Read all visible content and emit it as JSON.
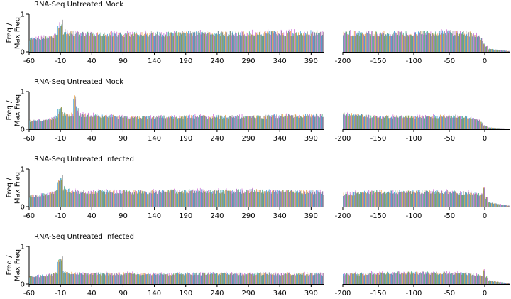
{
  "figure": {
    "ylabel_lines": [
      "Freq /",
      "Max Freq"
    ]
  },
  "colors": {
    "series": [
      "#1f8ecf",
      "#e8962e",
      "#2e9e6e",
      "#c65dd0",
      "#8f8f8f"
    ]
  },
  "chart_data": [
    {
      "type": "bar",
      "title": "RNA-Seq Untreated Mock",
      "ylabel": "Freq / Max Freq",
      "ylim": [
        0,
        1
      ],
      "yticks": [
        0,
        1
      ],
      "series_names": [],
      "panels": [
        {
          "xlim": [
            -60,
            410
          ],
          "xticks": [
            -60,
            -10,
            40,
            90,
            140,
            190,
            240,
            290,
            340,
            390
          ],
          "bins": 113,
          "profile": [
            {
              "x": -60,
              "y": 0.33
            },
            {
              "x": -30,
              "y": 0.4
            },
            {
              "x": -14,
              "y": 0.45
            },
            {
              "x": -10,
              "y": 0.98
            },
            {
              "x": -6,
              "y": 0.58
            },
            {
              "x": 0,
              "y": 0.5
            },
            {
              "x": 20,
              "y": 0.48
            },
            {
              "x": 100,
              "y": 0.48
            },
            {
              "x": 200,
              "y": 0.5
            },
            {
              "x": 300,
              "y": 0.5
            },
            {
              "x": 400,
              "y": 0.52
            },
            {
              "x": 410,
              "y": 0.48
            }
          ]
        },
        {
          "xlim": [
            -200,
            35
          ],
          "xticks": [
            -200,
            -150,
            -100,
            -50,
            0
          ],
          "bins": 62,
          "profile": [
            {
              "x": -200,
              "y": 0.5
            },
            {
              "x": -150,
              "y": 0.5
            },
            {
              "x": -100,
              "y": 0.5
            },
            {
              "x": -50,
              "y": 0.52
            },
            {
              "x": -15,
              "y": 0.48
            },
            {
              "x": -5,
              "y": 0.35
            },
            {
              "x": 0,
              "y": 0.2
            },
            {
              "x": 5,
              "y": 0.08
            },
            {
              "x": 35,
              "y": 0.02
            }
          ]
        }
      ]
    },
    {
      "type": "bar",
      "title": "RNA-Seq Untreated Mock",
      "ylabel": "Freq / Max Freq",
      "ylim": [
        0,
        1
      ],
      "yticks": [
        0,
        1
      ],
      "series_names": [],
      "panels": [
        {
          "xlim": [
            -60,
            410
          ],
          "xticks": [
            -60,
            -10,
            40,
            90,
            140,
            190,
            240,
            290,
            340,
            390
          ],
          "bins": 113,
          "profile": [
            {
              "x": -60,
              "y": 0.22
            },
            {
              "x": -30,
              "y": 0.26
            },
            {
              "x": -14,
              "y": 0.34
            },
            {
              "x": -10,
              "y": 0.68
            },
            {
              "x": -6,
              "y": 0.42
            },
            {
              "x": 0,
              "y": 0.38
            },
            {
              "x": 10,
              "y": 0.4
            },
            {
              "x": 14,
              "y": 0.99
            },
            {
              "x": 18,
              "y": 0.4
            },
            {
              "x": 100,
              "y": 0.32
            },
            {
              "x": 200,
              "y": 0.34
            },
            {
              "x": 300,
              "y": 0.34
            },
            {
              "x": 400,
              "y": 0.38
            },
            {
              "x": 410,
              "y": 0.36
            }
          ]
        },
        {
          "xlim": [
            -200,
            35
          ],
          "xticks": [
            -200,
            -150,
            -100,
            -50,
            0
          ],
          "bins": 62,
          "profile": [
            {
              "x": -200,
              "y": 0.4
            },
            {
              "x": -150,
              "y": 0.34
            },
            {
              "x": -100,
              "y": 0.33
            },
            {
              "x": -50,
              "y": 0.36
            },
            {
              "x": -15,
              "y": 0.3
            },
            {
              "x": -5,
              "y": 0.18
            },
            {
              "x": 0,
              "y": 0.1
            },
            {
              "x": 5,
              "y": 0.05
            },
            {
              "x": 35,
              "y": 0.01
            }
          ]
        }
      ]
    },
    {
      "type": "bar",
      "title": "RNA-Seq Untreated Infected",
      "ylabel": "Freq / Max Freq",
      "ylim": [
        0,
        1
      ],
      "yticks": [
        0,
        1
      ],
      "series_names": [],
      "panels": [
        {
          "xlim": [
            -60,
            410
          ],
          "xticks": [
            -60,
            -10,
            40,
            90,
            140,
            190,
            240,
            290,
            340,
            390
          ],
          "bins": 113,
          "profile": [
            {
              "x": -60,
              "y": 0.28
            },
            {
              "x": -30,
              "y": 0.34
            },
            {
              "x": -14,
              "y": 0.42
            },
            {
              "x": -10,
              "y": 0.98
            },
            {
              "x": -6,
              "y": 0.55
            },
            {
              "x": 0,
              "y": 0.45
            },
            {
              "x": 20,
              "y": 0.4
            },
            {
              "x": 100,
              "y": 0.4
            },
            {
              "x": 200,
              "y": 0.42
            },
            {
              "x": 300,
              "y": 0.42
            },
            {
              "x": 400,
              "y": 0.4
            },
            {
              "x": 410,
              "y": 0.38
            }
          ]
        },
        {
          "xlim": [
            -200,
            35
          ],
          "xticks": [
            -200,
            -150,
            -100,
            -50,
            0
          ],
          "bins": 62,
          "profile": [
            {
              "x": -200,
              "y": 0.34
            },
            {
              "x": -150,
              "y": 0.4
            },
            {
              "x": -100,
              "y": 0.4
            },
            {
              "x": -50,
              "y": 0.4
            },
            {
              "x": -15,
              "y": 0.36
            },
            {
              "x": -5,
              "y": 0.3
            },
            {
              "x": 0,
              "y": 0.55
            },
            {
              "x": 4,
              "y": 0.12
            },
            {
              "x": 35,
              "y": 0.02
            }
          ]
        }
      ]
    },
    {
      "type": "bar",
      "title": "RNA-Seq Untreated Infected",
      "ylabel": "Freq / Max Freq",
      "ylim": [
        0,
        1
      ],
      "yticks": [
        0,
        1
      ],
      "series_names": [],
      "panels": [
        {
          "xlim": [
            -60,
            410
          ],
          "xticks": [
            -60,
            -10,
            40,
            90,
            140,
            190,
            240,
            290,
            340,
            390
          ],
          "bins": 113,
          "profile": [
            {
              "x": -60,
              "y": 0.2
            },
            {
              "x": -30,
              "y": 0.24
            },
            {
              "x": -14,
              "y": 0.3
            },
            {
              "x": -10,
              "y": 0.99
            },
            {
              "x": -6,
              "y": 0.38
            },
            {
              "x": 0,
              "y": 0.3
            },
            {
              "x": 20,
              "y": 0.28
            },
            {
              "x": 100,
              "y": 0.28
            },
            {
              "x": 200,
              "y": 0.28
            },
            {
              "x": 300,
              "y": 0.28
            },
            {
              "x": 400,
              "y": 0.28
            },
            {
              "x": 410,
              "y": 0.26
            }
          ]
        },
        {
          "xlim": [
            -200,
            35
          ],
          "xticks": [
            -200,
            -150,
            -100,
            -50,
            0
          ],
          "bins": 62,
          "profile": [
            {
              "x": -200,
              "y": 0.26
            },
            {
              "x": -150,
              "y": 0.3
            },
            {
              "x": -100,
              "y": 0.3
            },
            {
              "x": -50,
              "y": 0.3
            },
            {
              "x": -15,
              "y": 0.27
            },
            {
              "x": -5,
              "y": 0.22
            },
            {
              "x": 0,
              "y": 0.38
            },
            {
              "x": 4,
              "y": 0.1
            },
            {
              "x": 35,
              "y": 0.02
            }
          ]
        }
      ]
    }
  ]
}
